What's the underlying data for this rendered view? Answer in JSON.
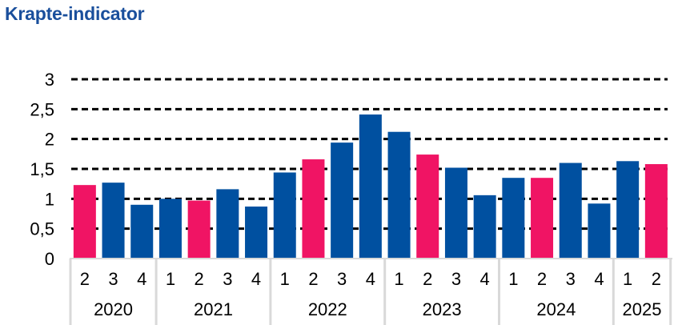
{
  "title": "Krapte-indicator",
  "colors": {
    "title": "#1a4f9c",
    "blue": "#0050a0",
    "pink": "#f01464",
    "grid": "#000000",
    "axis_band": "#d9d9d9"
  },
  "chart_data": {
    "type": "bar",
    "title": "Krapte-indicator",
    "xlabel": "",
    "ylabel": "",
    "ylim": [
      0,
      3
    ],
    "yticks": [
      "0",
      "0,5",
      "1",
      "1,5",
      "2",
      "2,5",
      "3"
    ],
    "ytick_values": [
      0,
      0.5,
      1,
      1.5,
      2,
      2.5,
      3
    ],
    "grid": "dashed horizontal",
    "legend": "none",
    "groups": [
      {
        "year": "2020",
        "quarters": [
          "2",
          "3",
          "4"
        ]
      },
      {
        "year": "2021",
        "quarters": [
          "1",
          "2",
          "3",
          "4"
        ]
      },
      {
        "year": "2022",
        "quarters": [
          "1",
          "2",
          "3",
          "4"
        ]
      },
      {
        "year": "2023",
        "quarters": [
          "1",
          "2",
          "3",
          "4"
        ]
      },
      {
        "year": "2024",
        "quarters": [
          "1",
          "2",
          "3",
          "4"
        ]
      },
      {
        "year": "2025",
        "quarters": [
          "1",
          "2"
        ]
      }
    ],
    "values": [
      1.23,
      1.27,
      0.9,
      1.0,
      0.97,
      1.16,
      0.87,
      1.44,
      1.66,
      1.94,
      2.41,
      2.12,
      1.74,
      1.52,
      1.06,
      1.35,
      1.35,
      1.6,
      0.92,
      1.63,
      1.58
    ],
    "highlight": [
      true,
      false,
      false,
      false,
      true,
      false,
      false,
      false,
      true,
      false,
      false,
      false,
      true,
      false,
      false,
      false,
      true,
      false,
      false,
      false,
      true
    ]
  }
}
